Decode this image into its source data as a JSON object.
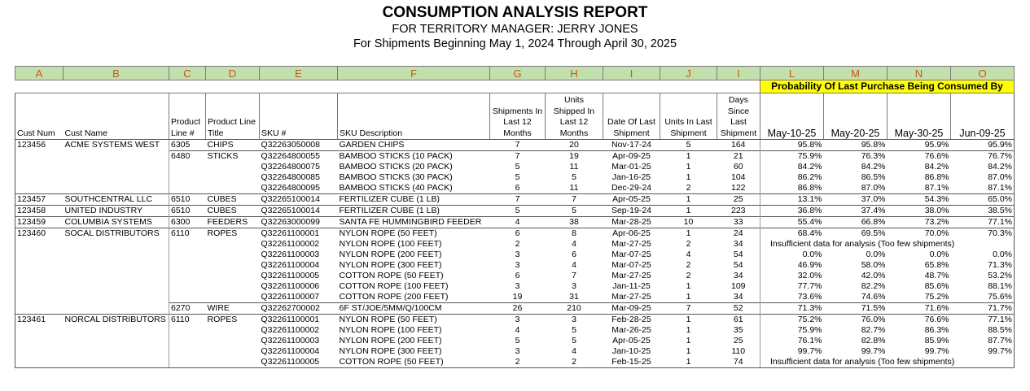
{
  "header": {
    "title": "CONSUMPTION ANALYSIS REPORT",
    "subtitle": "FOR TERRITORY MANAGER: JERRY JONES",
    "date_range": "For Shipments Beginning May 1, 2024 Through April 30, 2025"
  },
  "table": {
    "column_letters": [
      "A",
      "B",
      "C",
      "D",
      "E",
      "F",
      "G",
      "H",
      "I",
      "J",
      "I",
      "L",
      "M",
      "N",
      "O"
    ],
    "group_header": "Probability Of Last Purchase Being Consumed By",
    "columns": [
      "Cust Num",
      "Cust Name",
      "Product\nLine #",
      "Product Line\nTitle",
      "SKU #",
      "SKU Description",
      "Shipments In\nLast 12\nMonths",
      "Units\nShipped In\nLast 12\nMonths",
      "Date Of Last\nShipment",
      "Units In Last\nShipment",
      "Days\nSince\nLast\nShipment",
      "May-10-25",
      "May-20-25",
      "May-30-25",
      "Jun-09-25"
    ],
    "rows": [
      {
        "cells": [
          "123456",
          "ACME SYSTEMS WEST",
          "6305",
          "CHIPS",
          "Q32263050008",
          "GARDEN CHIPS",
          7,
          20,
          "Nov-17-24",
          5,
          164
        ],
        "probabilities": [
          "95.8%",
          "95.8%",
          "95.9%",
          "95.9%"
        ]
      },
      {
        "cells": [
          null,
          null,
          "6480",
          "STICKS",
          "Q32264800055",
          "BAMBOO STICKS (10 PACK)",
          7,
          19,
          "Apr-09-25",
          1,
          21
        ],
        "probabilities": [
          "75.9%",
          "76.3%",
          "76.6%",
          "76.7%"
        ]
      },
      {
        "cells": [
          null,
          null,
          null,
          null,
          "Q32264800075",
          "BAMBOO STICKS (20 PACK)",
          5,
          11,
          "Mar-01-25",
          1,
          60
        ],
        "probabilities": [
          "84.2%",
          "84.2%",
          "84.2%",
          "84.2%"
        ]
      },
      {
        "cells": [
          null,
          null,
          null,
          null,
          "Q32264800085",
          "BAMBOO STICKS (30 PACK)",
          5,
          5,
          "Jan-16-25",
          1,
          104
        ],
        "probabilities": [
          "86.2%",
          "86.5%",
          "86.8%",
          "87.0%"
        ]
      },
      {
        "cells": [
          null,
          null,
          null,
          null,
          "Q32264800095",
          "BAMBOO STICKS (40 PACK)",
          6,
          11,
          "Dec-29-24",
          2,
          122
        ],
        "probabilities": [
          "86.8%",
          "87.0%",
          "87.1%",
          "87.1%"
        ]
      },
      {
        "cells": [
          "123457",
          "SOUTHCENTRAL LLC",
          "6510",
          "CUBES",
          "Q32265100014",
          "FERTILIZER CUBE (1 LB)",
          7,
          7,
          "Apr-05-25",
          1,
          25
        ],
        "probabilities": [
          "13.1%",
          "37.0%",
          "54.3%",
          "65.0%"
        ]
      },
      {
        "cells": [
          "123458",
          "UNITED INDUSTRY",
          "6510",
          "CUBES",
          "Q32265100014",
          "FERTILIZER CUBE (1 LB)",
          5,
          5,
          "Sep-19-24",
          1,
          223
        ],
        "probabilities": [
          "36.8%",
          "37.4%",
          "38.0%",
          "38.5%"
        ]
      },
      {
        "cells": [
          "123459",
          "COLUMBIA SYSTEMS",
          "6300",
          "FEEDERS",
          "Q32263000099",
          "SANTA FE HUMMINGBIRD FEEDER",
          4,
          38,
          "Mar-28-25",
          10,
          33
        ],
        "probabilities": [
          "55.4%",
          "66.8%",
          "73.2%",
          "77.1%"
        ]
      },
      {
        "cells": [
          "123460",
          "SOCAL DISTRIBUTORS",
          "6110",
          "ROPES",
          "Q32261100001",
          "NYLON ROPE (50 FEET)",
          6,
          8,
          "Apr-06-25",
          1,
          24
        ],
        "probabilities": [
          "68.4%",
          "69.5%",
          "70.0%",
          "70.3%"
        ]
      },
      {
        "cells": [
          null,
          null,
          null,
          null,
          "Q32261100002",
          "NYLON ROPE (100 FEET)",
          2,
          4,
          "Mar-27-25",
          2,
          34
        ],
        "note": "Insufficient data for analysis (Too few shipments)"
      },
      {
        "cells": [
          null,
          null,
          null,
          null,
          "Q32261100003",
          "NYLON ROPE (200 FEET)",
          3,
          6,
          "Mar-07-25",
          4,
          54
        ],
        "probabilities": [
          "0.0%",
          "0.0%",
          "0.0%",
          "0.0%"
        ]
      },
      {
        "cells": [
          null,
          null,
          null,
          null,
          "Q32261100004",
          "NYLON ROPE (300 FEET)",
          3,
          4,
          "Mar-07-25",
          2,
          54
        ],
        "probabilities": [
          "46.9%",
          "58.0%",
          "65.8%",
          "71.3%"
        ]
      },
      {
        "cells": [
          null,
          null,
          null,
          null,
          "Q32261100005",
          "COTTON ROPE (50 FEET)",
          6,
          7,
          "Mar-27-25",
          2,
          34
        ],
        "probabilities": [
          "32.0%",
          "42.0%",
          "48.7%",
          "53.2%"
        ]
      },
      {
        "cells": [
          null,
          null,
          null,
          null,
          "Q32261100006",
          "COTTON ROPE (100 FEET)",
          3,
          3,
          "Jan-11-25",
          1,
          109
        ],
        "probabilities": [
          "77.7%",
          "82.2%",
          "85.6%",
          "88.1%"
        ]
      },
      {
        "cells": [
          null,
          null,
          null,
          null,
          "Q32261100007",
          "COTTON ROPE (200 FEET)",
          19,
          31,
          "Mar-27-25",
          1,
          34
        ],
        "probabilities": [
          "73.6%",
          "74.6%",
          "75.2%",
          "75.6%"
        ]
      },
      {
        "cells": [
          null,
          null,
          "6270",
          "WIRE",
          "Q32262700002",
          "6F ST/JOE/5MM/Q/100CM",
          26,
          210,
          "Mar-09-25",
          7,
          52
        ],
        "probabilities": [
          "71.3%",
          "71.5%",
          "71.6%",
          "71.7%"
        ]
      },
      {
        "cells": [
          "123461",
          "NORCAL DISTRIBUTORS",
          "6110",
          "ROPES",
          "Q32261100001",
          "NYLON ROPE (50 FEET)",
          3,
          3,
          "Feb-28-25",
          1,
          61
        ],
        "probabilities": [
          "75.2%",
          "76.0%",
          "76.6%",
          "77.1%"
        ]
      },
      {
        "cells": [
          null,
          null,
          null,
          null,
          "Q32261100002",
          "NYLON ROPE (100 FEET)",
          4,
          5,
          "Mar-26-25",
          1,
          35
        ],
        "probabilities": [
          "75.9%",
          "82.7%",
          "86.3%",
          "88.5%"
        ]
      },
      {
        "cells": [
          null,
          null,
          null,
          null,
          "Q32261100003",
          "NYLON ROPE (200 FEET)",
          5,
          5,
          "Apr-05-25",
          1,
          25
        ],
        "probabilities": [
          "76.1%",
          "82.8%",
          "85.9%",
          "87.7%"
        ]
      },
      {
        "cells": [
          null,
          null,
          null,
          null,
          "Q32261100004",
          "NYLON ROPE (300 FEET)",
          3,
          4,
          "Jan-10-25",
          1,
          110
        ],
        "probabilities": [
          "99.7%",
          "99.7%",
          "99.7%",
          "99.7%"
        ]
      },
      {
        "cells": [
          null,
          null,
          null,
          null,
          "Q32261100005",
          "COTTON ROPE (50 FEET)",
          2,
          2,
          "Feb-15-25",
          1,
          74
        ],
        "note": "Insufficient data for analysis (Too few shipments)"
      }
    ]
  }
}
